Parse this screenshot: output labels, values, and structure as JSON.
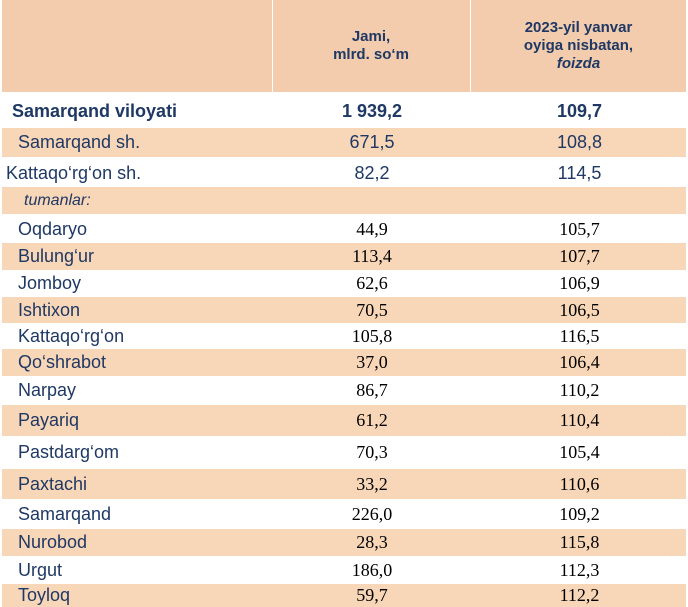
{
  "header": {
    "col1": [
      "Jami,",
      "mlrd. so‘m"
    ],
    "col2": [
      "2023-yil yanvar",
      "oyiga nisbatan,"
    ],
    "col2_unit": "foizda"
  },
  "rows": [
    {
      "name": "Samarqand viloyati",
      "v1": "1 939,2",
      "v2": "109,7"
    },
    {
      "name": "Samarqand sh.",
      "v1": "671,5",
      "v2": "108,8"
    },
    {
      "name": "Kattaqo‘rg‘on sh.",
      "v1": "82,2",
      "v2": "114,5"
    },
    {
      "name": "tumanlar:",
      "v1": "",
      "v2": ""
    },
    {
      "name": "Oqdaryo",
      "v1": "44,9",
      "v2": "105,7"
    },
    {
      "name": "Bulung‘ur",
      "v1": "113,4",
      "v2": "107,7"
    },
    {
      "name": "Jomboy",
      "v1": "62,6",
      "v2": "106,9"
    },
    {
      "name": "Ishtixon",
      "v1": "70,5",
      "v2": "106,5"
    },
    {
      "name": "Kattaqo‘rg‘on",
      "v1": "105,8",
      "v2": "116,5"
    },
    {
      "name": "Qo‘shrabot",
      "v1": "37,0",
      "v2": "106,4"
    },
    {
      "name": "Narpay",
      "v1": "86,7",
      "v2": "110,2"
    },
    {
      "name": "Payariq",
      "v1": "61,2",
      "v2": "110,4"
    },
    {
      "name": "Pastdarg‘om",
      "v1": "70,3",
      "v2": "105,4"
    },
    {
      "name": "Paxtachi",
      "v1": "33,2",
      "v2": "110,6"
    },
    {
      "name": "Samarqand",
      "v1": "226,0",
      "v2": "109,2"
    },
    {
      "name": "Nurobod",
      "v1": "28,3",
      "v2": "115,8"
    },
    {
      "name": "Urgut",
      "v1": "186,0",
      "v2": "112,3"
    },
    {
      "name": "Toyloq",
      "v1": "59,7",
      "v2": "112,2"
    }
  ],
  "colors": {
    "header_bg": "#f2ccad",
    "row_shade": "#f8d6b8",
    "text": "#1f3864"
  }
}
